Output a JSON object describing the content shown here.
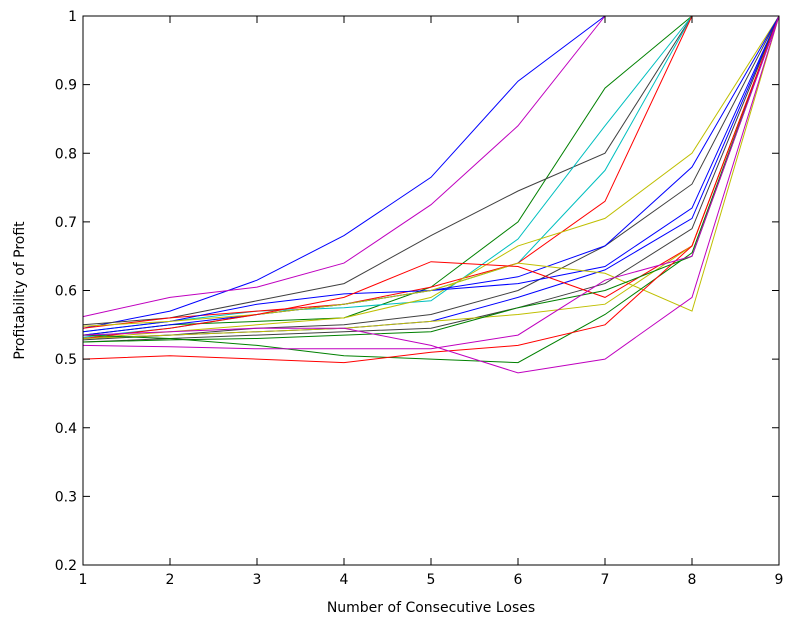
{
  "chart_data": {
    "type": "line",
    "xlabel": "Number of Consecutive Loses",
    "ylabel": "Profitability of Profit",
    "xlim": [
      1,
      9
    ],
    "ylim": [
      0.2,
      1
    ],
    "xticks": [
      1,
      2,
      3,
      4,
      5,
      6,
      7,
      8,
      9
    ],
    "yticks": [
      0.2,
      0.3,
      0.4,
      0.5,
      0.6,
      0.7,
      0.8,
      0.9,
      1
    ],
    "ytick_labels": [
      "0.2",
      "0.3",
      "0.4",
      "0.5",
      "0.6",
      "0.7",
      "0.8",
      "0.9",
      "1"
    ],
    "grid": false,
    "legend": false,
    "series": [
      {
        "color": "#0000ff",
        "x": [
          1,
          2,
          3,
          4,
          5,
          6,
          7
        ],
        "values": [
          0.545,
          0.57,
          0.615,
          0.68,
          0.765,
          0.905,
          1.0
        ]
      },
      {
        "color": "#bf00bf",
        "x": [
          1,
          2,
          3,
          4,
          5,
          6,
          7
        ],
        "values": [
          0.562,
          0.59,
          0.605,
          0.64,
          0.725,
          0.84,
          1.0
        ]
      },
      {
        "color": "#008000",
        "x": [
          1,
          2,
          3,
          4,
          5,
          6,
          7,
          8
        ],
        "values": [
          0.535,
          0.55,
          0.555,
          0.56,
          0.605,
          0.7,
          0.895,
          1.0
        ]
      },
      {
        "color": "#404040",
        "x": [
          1,
          2,
          3,
          4,
          5,
          6,
          7,
          8
        ],
        "values": [
          0.55,
          0.56,
          0.585,
          0.61,
          0.68,
          0.745,
          0.8,
          1.0
        ]
      },
      {
        "color": "#00bfbf",
        "x": [
          1,
          2,
          3,
          4,
          5,
          6,
          7,
          8
        ],
        "values": [
          0.54,
          0.555,
          0.57,
          0.575,
          0.585,
          0.675,
          0.84,
          1.0
        ]
      },
      {
        "color": "#00bfbf",
        "x": [
          1,
          2,
          3,
          4,
          5,
          6,
          7,
          8
        ],
        "values": [
          0.532,
          0.545,
          0.565,
          0.58,
          0.6,
          0.64,
          0.775,
          1.0
        ]
      },
      {
        "color": "#ff0000",
        "x": [
          1,
          2,
          3,
          4,
          5,
          6,
          7,
          8
        ],
        "values": [
          0.545,
          0.56,
          0.57,
          0.58,
          0.605,
          0.64,
          0.73,
          1.0
        ]
      },
      {
        "color": "#bfbf00",
        "x": [
          1,
          2,
          3,
          4,
          5,
          6,
          7,
          8,
          9
        ],
        "values": [
          0.53,
          0.54,
          0.55,
          0.56,
          0.59,
          0.665,
          0.705,
          0.8,
          1.0
        ]
      },
      {
        "color": "#404040",
        "x": [
          1,
          2,
          3,
          4,
          5,
          6,
          7,
          8,
          9
        ],
        "values": [
          0.528,
          0.535,
          0.545,
          0.55,
          0.565,
          0.6,
          0.665,
          0.755,
          1.0
        ]
      },
      {
        "color": "#0000ff",
        "x": [
          1,
          2,
          3,
          4,
          5,
          6,
          7,
          8,
          9
        ],
        "values": [
          0.54,
          0.555,
          0.58,
          0.595,
          0.6,
          0.62,
          0.665,
          0.78,
          1.0
        ]
      },
      {
        "color": "#0000ff",
        "x": [
          1,
          2,
          3,
          4,
          5,
          6,
          7,
          8,
          9
        ],
        "values": [
          0.535,
          0.55,
          0.565,
          0.58,
          0.6,
          0.61,
          0.635,
          0.72,
          1.0
        ]
      },
      {
        "color": "#0000ff",
        "x": [
          1,
          2,
          3,
          4,
          5,
          6,
          7,
          8,
          9
        ],
        "values": [
          0.53,
          0.535,
          0.54,
          0.545,
          0.555,
          0.59,
          0.63,
          0.705,
          1.0
        ]
      },
      {
        "color": "#bfbf00",
        "x": [
          1,
          2,
          3,
          4,
          5,
          6,
          7,
          8,
          9
        ],
        "values": [
          0.548,
          0.555,
          0.565,
          0.58,
          0.6,
          0.64,
          0.625,
          0.57,
          1.0
        ]
      },
      {
        "color": "#404040",
        "x": [
          1,
          2,
          3,
          4,
          5,
          6,
          7,
          8,
          9
        ],
        "values": [
          0.525,
          0.53,
          0.535,
          0.54,
          0.545,
          0.575,
          0.61,
          0.69,
          1.0
        ]
      },
      {
        "color": "#ff0000",
        "x": [
          1,
          2,
          3,
          4,
          5,
          6,
          7,
          8,
          9
        ],
        "values": [
          0.53,
          0.545,
          0.565,
          0.59,
          0.642,
          0.635,
          0.59,
          0.665,
          1.0
        ]
      },
      {
        "color": "#bfbf00",
        "x": [
          1,
          2,
          3,
          4,
          5,
          6,
          7,
          8,
          9
        ],
        "values": [
          0.53,
          0.535,
          0.54,
          0.545,
          0.555,
          0.565,
          0.58,
          0.665,
          1.0
        ]
      },
      {
        "color": "#008000",
        "x": [
          1,
          2,
          3,
          4,
          5,
          6,
          7,
          8,
          9
        ],
        "values": [
          0.525,
          0.528,
          0.53,
          0.535,
          0.54,
          0.575,
          0.6,
          0.65,
          1.0
        ]
      },
      {
        "color": "#008000",
        "x": [
          1,
          2,
          3,
          4,
          5,
          6,
          7,
          8,
          9
        ],
        "values": [
          0.535,
          0.53,
          0.52,
          0.505,
          0.5,
          0.495,
          0.565,
          0.655,
          1.0
        ]
      },
      {
        "color": "#ff0000",
        "x": [
          1,
          2,
          3,
          4,
          5,
          6,
          7,
          8,
          9
        ],
        "values": [
          0.5,
          0.505,
          0.5,
          0.495,
          0.51,
          0.52,
          0.55,
          0.665,
          1.0
        ]
      },
      {
        "color": "#bf00bf",
        "x": [
          1,
          2,
          3,
          4,
          5,
          6,
          7,
          8,
          9
        ],
        "values": [
          0.52,
          0.518,
          0.515,
          0.515,
          0.515,
          0.535,
          0.615,
          0.65,
          1.0
        ]
      },
      {
        "color": "#bf00bf",
        "x": [
          1,
          2,
          3,
          4,
          5,
          6,
          7,
          8,
          9
        ],
        "values": [
          0.535,
          0.54,
          0.545,
          0.545,
          0.52,
          0.48,
          0.5,
          0.59,
          1.0
        ]
      }
    ]
  }
}
